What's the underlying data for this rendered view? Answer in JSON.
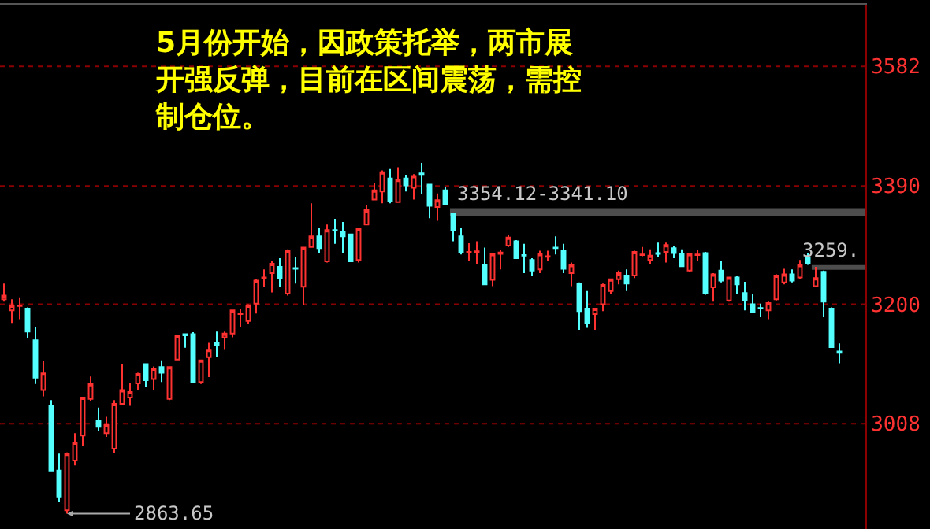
{
  "chart_data": {
    "type": "candlestick",
    "title": "5月份开始，因政策托举，两市展开强反弹，目前在区间震荡，需控制仓位。",
    "categories": [
      null,
      null,
      null,
      null,
      null,
      null,
      null,
      null,
      null,
      null,
      null,
      null,
      null,
      null,
      null,
      null,
      null,
      null,
      null,
      null,
      null,
      null,
      null,
      null,
      null,
      null,
      null,
      null,
      null,
      null,
      null,
      null,
      null,
      null,
      null,
      null,
      null,
      null,
      null,
      null,
      null,
      null,
      null,
      null,
      null,
      null,
      null,
      null,
      null,
      null,
      null,
      null,
      null,
      null,
      null,
      null,
      null,
      null,
      null,
      null,
      null,
      null,
      null,
      null,
      null,
      null,
      null,
      null,
      null,
      null,
      null,
      null,
      null,
      null,
      null,
      null,
      null,
      null,
      null,
      null,
      null,
      null,
      null,
      null,
      null,
      null,
      null,
      null,
      null,
      null,
      null,
      null,
      null,
      null,
      null,
      null,
      null,
      null,
      null,
      null,
      null,
      null,
      null,
      null,
      null,
      null,
      null
    ],
    "ohlc": [
      [
        3208,
        3233,
        3204,
        3214
      ],
      [
        3190,
        3208,
        3170,
        3198
      ],
      [
        3197,
        3211,
        3176,
        3198
      ],
      [
        3193,
        3195,
        3145,
        3156
      ],
      [
        3142,
        3163,
        3072,
        3082
      ],
      [
        3062,
        3109,
        3052,
        3089
      ],
      [
        3037,
        3046,
        2933,
        2933
      ],
      [
        2933,
        2960,
        2882,
        2891
      ],
      [
        2869,
        2962,
        2863.65,
        2960
      ],
      [
        2949,
        2993,
        2941,
        2978
      ],
      [
        2989,
        3051,
        2972,
        3050
      ],
      [
        3048,
        3084,
        3044,
        3072
      ],
      [
        3013,
        3034,
        2996,
        3003
      ],
      [
        2993,
        3019,
        2987,
        3006
      ],
      [
        2968,
        3046,
        2961,
        3040
      ],
      [
        3040,
        3104,
        3040,
        3062
      ],
      [
        3050,
        3073,
        3037,
        3059
      ],
      [
        3073,
        3090,
        3062,
        3088
      ],
      [
        3104,
        3104,
        3067,
        3078
      ],
      [
        3080,
        3100,
        3062,
        3097
      ],
      [
        3099,
        3110,
        3075,
        3090
      ],
      [
        3048,
        3100,
        3046,
        3099
      ],
      [
        3111,
        3151,
        3110,
        3149
      ],
      [
        3152,
        3152,
        3130,
        3150
      ],
      [
        3152,
        3155,
        3075,
        3075
      ],
      [
        3075,
        3111,
        3072,
        3110
      ],
      [
        3115,
        3138,
        3083,
        3127
      ],
      [
        3138,
        3156,
        3115,
        3134
      ],
      [
        3147,
        3156,
        3128,
        3153
      ],
      [
        3153,
        3191,
        3147,
        3190
      ],
      [
        3184,
        3193,
        3164,
        3185
      ],
      [
        3173,
        3200,
        3168,
        3198
      ],
      [
        3201,
        3240,
        3185,
        3238
      ],
      [
        3242,
        3256,
        3227,
        3243
      ],
      [
        3250,
        3269,
        3219,
        3265
      ],
      [
        3260,
        3274,
        3227,
        3242
      ],
      [
        3217,
        3288,
        3214,
        3286
      ],
      [
        3258,
        3276,
        3233,
        3257
      ],
      [
        3228,
        3291,
        3199,
        3291
      ],
      [
        3292,
        3362,
        3292,
        3309
      ],
      [
        3309,
        3322,
        3282,
        3290
      ],
      [
        3269,
        3328,
        3267,
        3319
      ],
      [
        3319,
        3337,
        3297,
        3318
      ],
      [
        3316,
        3332,
        3282,
        3309
      ],
      [
        3312,
        3313,
        3269,
        3269
      ],
      [
        3271,
        3322,
        3267,
        3321
      ],
      [
        3328,
        3360,
        3328,
        3351
      ],
      [
        3368,
        3395,
        3368,
        3383
      ],
      [
        3381,
        3415,
        3362,
        3412
      ],
      [
        3402,
        3417,
        3362,
        3366
      ],
      [
        3364,
        3420,
        3364,
        3400
      ],
      [
        3402,
        3408,
        3381,
        3391
      ],
      [
        3387,
        3409,
        3368,
        3406
      ],
      [
        3410,
        3427,
        3377,
        3409
      ],
      [
        3392,
        3392,
        3338,
        3358
      ],
      [
        3356,
        3378,
        3334,
        3367
      ],
      [
        3383,
        3389,
        3360,
        3361
      ],
      [
        3345,
        3347,
        3301,
        3318
      ],
      [
        3309,
        3322,
        3280,
        3284
      ],
      [
        3283,
        3298,
        3269,
        3284
      ],
      [
        3283,
        3301,
        3265,
        3285
      ],
      [
        3263,
        3291,
        3232,
        3232
      ],
      [
        3239,
        3281,
        3229,
        3281
      ],
      [
        3281,
        3287,
        3256,
        3283
      ],
      [
        3294,
        3311,
        3292,
        3307
      ],
      [
        3301,
        3303,
        3274,
        3274
      ],
      [
        3279,
        3297,
        3250,
        3278
      ],
      [
        3271,
        3274,
        3246,
        3254
      ],
      [
        3256,
        3286,
        3250,
        3281
      ],
      [
        3276,
        3286,
        3269,
        3277
      ],
      [
        3291,
        3309,
        3280,
        3290
      ],
      [
        3286,
        3297,
        3250,
        3257
      ],
      [
        3250,
        3267,
        3229,
        3263
      ],
      [
        3233,
        3235,
        3159,
        3189
      ],
      [
        3193,
        3221,
        3162,
        3169
      ],
      [
        3184,
        3193,
        3159,
        3193
      ],
      [
        3200,
        3233,
        3189,
        3231
      ],
      [
        3221,
        3240,
        3217,
        3240
      ],
      [
        3240,
        3254,
        3232,
        3250
      ],
      [
        3246,
        3256,
        3221,
        3233
      ],
      [
        3246,
        3286,
        3242,
        3284
      ],
      [
        3279,
        3292,
        3277,
        3280
      ],
      [
        3271,
        3288,
        3265,
        3278
      ],
      [
        3282,
        3299,
        3276,
        3281
      ],
      [
        3284,
        3299,
        3267,
        3295
      ],
      [
        3290,
        3294,
        3274,
        3282
      ],
      [
        3281,
        3288,
        3261,
        3261
      ],
      [
        3254,
        3281,
        3252,
        3281
      ],
      [
        3279,
        3287,
        3269,
        3280
      ],
      [
        3282,
        3284,
        3215,
        3218
      ],
      [
        3227,
        3250,
        3204,
        3248
      ],
      [
        3254,
        3269,
        3235,
        3238
      ],
      [
        3206,
        3243,
        3204,
        3243
      ],
      [
        3243,
        3246,
        3217,
        3232
      ],
      [
        3218,
        3236,
        3190,
        3206
      ],
      [
        3200,
        3217,
        3187,
        3187
      ],
      [
        3194,
        3201,
        3179,
        3193
      ],
      [
        3190,
        3204,
        3176,
        3202
      ],
      [
        3208,
        3248,
        3206,
        3246
      ],
      [
        3235,
        3257,
        3232,
        3248
      ],
      [
        3248,
        3256,
        3235,
        3238
      ],
      [
        3243,
        3271,
        3240,
        3263
      ],
      [
        3274,
        3282,
        3263,
        3265
      ],
      [
        3229,
        3260,
        3227,
        3242
      ],
      [
        3252,
        3254,
        3179,
        3204
      ],
      [
        3193,
        3195,
        3131,
        3131
      ],
      [
        3124,
        3137,
        3105,
        3122
      ]
    ],
    "colors": [
      "#ff3232",
      "#ff3232",
      "#ff3232",
      "#54ffff",
      "#54ffff",
      "#ff3232",
      "#54ffff",
      "#54ffff",
      "#ff3232",
      "#ff3232",
      "#ff3232",
      "#ff3232",
      "#54ffff",
      "#ff3232",
      "#ff3232",
      "#ff3232",
      "#ff3232",
      "#ff3232",
      "#54ffff",
      "#ff3232",
      "#54ffff",
      "#ff3232",
      "#ff3232",
      "#54ffff",
      "#54ffff",
      "#ff3232",
      "#ff3232",
      "#54ffff",
      "#ff3232",
      "#ff3232",
      "#ff3232",
      "#ff3232",
      "#ff3232",
      "#ff3232",
      "#ff3232",
      "#54ffff",
      "#ff3232",
      "#54ffff",
      "#ff3232",
      "#ff3232",
      "#54ffff",
      "#ff3232",
      "#54ffff",
      "#54ffff",
      "#54ffff",
      "#ff3232",
      "#ff3232",
      "#ff3232",
      "#ff3232",
      "#54ffff",
      "#ff3232",
      "#54ffff",
      "#ff3232",
      "#54ffff",
      "#54ffff",
      "#ff3232",
      "#54ffff",
      "#54ffff",
      "#54ffff",
      "#ff3232",
      "#ff3232",
      "#54ffff",
      "#ff3232",
      "#ff3232",
      "#ff3232",
      "#54ffff",
      "#54ffff",
      "#54ffff",
      "#ff3232",
      "#ff3232",
      "#54ffff",
      "#54ffff",
      "#ff3232",
      "#54ffff",
      "#54ffff",
      "#ff3232",
      "#ff3232",
      "#ff3232",
      "#ff3232",
      "#54ffff",
      "#ff3232",
      "#ff3232",
      "#ff3232",
      "#54ffff",
      "#ff3232",
      "#54ffff",
      "#54ffff",
      "#ff3232",
      "#ff3232",
      "#54ffff",
      "#ff3232",
      "#54ffff",
      "#ff3232",
      "#54ffff",
      "#54ffff",
      "#54ffff",
      "#54ffff",
      "#ff3232",
      "#ff3232",
      "#ff3232",
      "#54ffff",
      "#ff3232",
      "#54ffff",
      "#ff3232",
      "#54ffff",
      "#54ffff",
      "#54ffff"
    ],
    "ylim": [
      2839,
      3681
    ],
    "yticks": [
      3008,
      3200,
      3390,
      3582
    ],
    "grid": "y",
    "bands": [
      {
        "axis": "y",
        "from": 3341.1,
        "to": 3354.12,
        "label": "3354.12-3341.10",
        "color": "#4d4d4d"
      }
    ],
    "ref_lines": [
      {
        "axis": "y",
        "value": 3259,
        "label": "3259.",
        "color": "#4d4d4d"
      }
    ],
    "annotations": [
      "2863.65"
    ]
  }
}
